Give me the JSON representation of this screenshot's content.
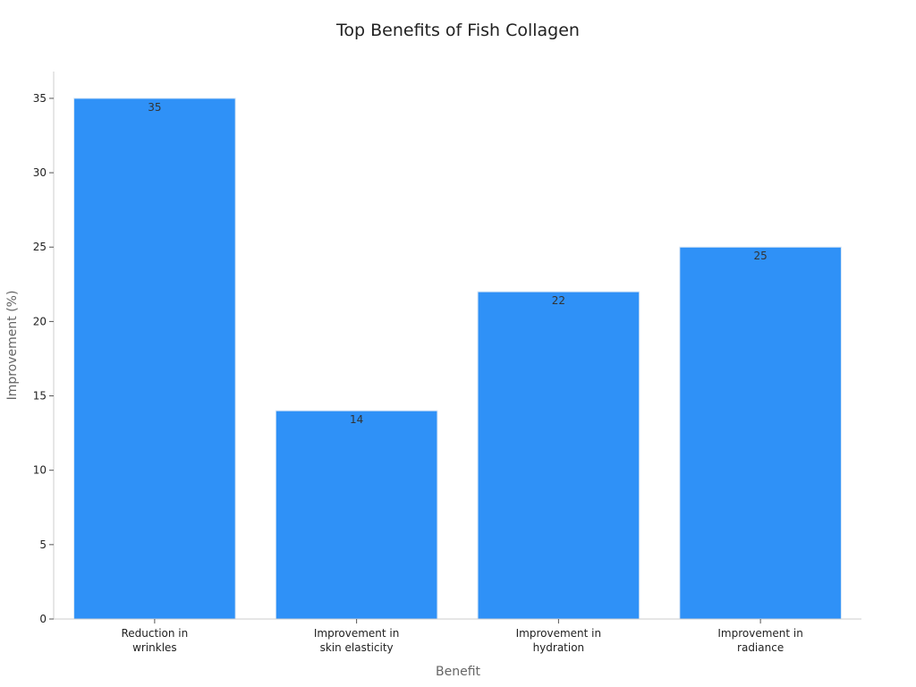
{
  "chart_data": {
    "type": "bar",
    "title": "Top Benefits of Fish Collagen",
    "xlabel": "Benefit",
    "ylabel": "Improvement (%)",
    "categories": [
      [
        "Reduction in",
        "wrinkles"
      ],
      [
        "Improvement in",
        "skin elasticity"
      ],
      [
        "Improvement in",
        "hydration"
      ],
      [
        "Improvement in",
        "radiance"
      ]
    ],
    "values": [
      35,
      14,
      22,
      25
    ],
    "data_labels": [
      "35",
      "14",
      "22",
      "25"
    ],
    "ylim": [
      0,
      36.8
    ],
    "yticks": [
      0,
      5,
      10,
      15,
      20,
      25,
      30,
      35
    ],
    "ytick_labels": [
      "0",
      "5",
      "10",
      "15",
      "20",
      "25",
      "30",
      "35"
    ],
    "grid": false,
    "bar_color": "#2f91f7",
    "bar_edge_color": "#d8e6f5",
    "axis_color": "#cccccc"
  }
}
